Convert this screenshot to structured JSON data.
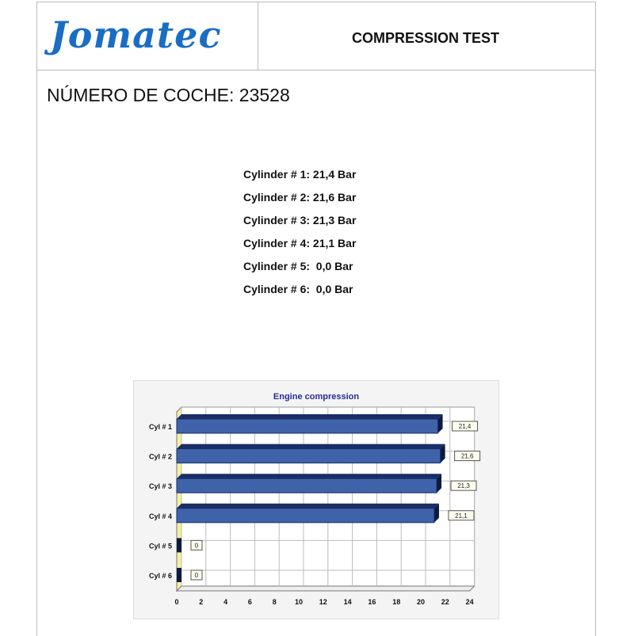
{
  "header": {
    "logo": "Jomatec",
    "title": "COMPRESSION TEST"
  },
  "car_number": "NÚMERO DE COCHE: 23528",
  "cylinders": [
    "Cylinder # 1: 21,4 Bar",
    "Cylinder # 2: 21,6 Bar",
    "Cylinder # 3: 21,3 Bar",
    "Cylinder # 4: 21,1 Bar",
    "Cylinder # 5:  0,0 Bar",
    "Cylinder # 6:  0,0 Bar"
  ],
  "chart_data": {
    "type": "bar",
    "orientation": "horizontal",
    "title": "Engine compression",
    "categories": [
      "Cyl # 1",
      "Cyl # 2",
      "Cyl # 3",
      "Cyl # 4",
      "Cyl # 5",
      "Cyl # 6"
    ],
    "values": [
      21.4,
      21.6,
      21.3,
      21.1,
      0,
      0
    ],
    "data_labels": [
      "21,4",
      "21,6",
      "21,3",
      "21,1",
      "0",
      "0"
    ],
    "xlim": [
      0,
      24
    ],
    "xticks": [
      0,
      2,
      4,
      6,
      8,
      10,
      12,
      14,
      16,
      18,
      20,
      22,
      24
    ],
    "grid": true,
    "colors": {
      "bar": "#3f63a8",
      "bar_top": "#1a2d66",
      "wall": "#f5f0a0",
      "title": "#2a2a9a"
    }
  }
}
